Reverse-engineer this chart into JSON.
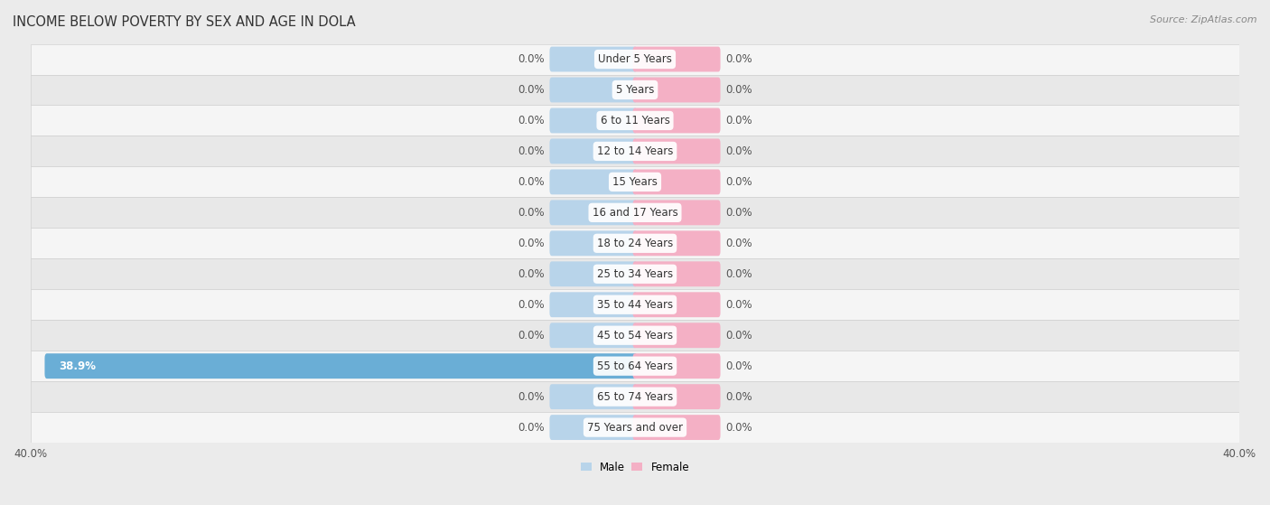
{
  "title": "INCOME BELOW POVERTY BY SEX AND AGE IN DOLA",
  "source": "Source: ZipAtlas.com",
  "categories": [
    "Under 5 Years",
    "5 Years",
    "6 to 11 Years",
    "12 to 14 Years",
    "15 Years",
    "16 and 17 Years",
    "18 to 24 Years",
    "25 to 34 Years",
    "35 to 44 Years",
    "45 to 54 Years",
    "55 to 64 Years",
    "65 to 74 Years",
    "75 Years and over"
  ],
  "male_values": [
    0.0,
    0.0,
    0.0,
    0.0,
    0.0,
    0.0,
    0.0,
    0.0,
    0.0,
    0.0,
    38.9,
    0.0,
    0.0
  ],
  "female_values": [
    0.0,
    0.0,
    0.0,
    0.0,
    0.0,
    0.0,
    0.0,
    0.0,
    0.0,
    0.0,
    0.0,
    0.0,
    0.0
  ],
  "male_color_light": "#b8d4ea",
  "male_color_full": "#6aaed6",
  "female_color": "#f4b0c5",
  "male_label": "Male",
  "female_label": "Female",
  "xlim": 40.0,
  "bar_height": 0.52,
  "bg_color": "#ebebeb",
  "row_bg_even": "#f5f5f5",
  "row_bg_odd": "#e8e8e8",
  "title_fontsize": 10.5,
  "label_fontsize": 8.5,
  "tick_fontsize": 8.5,
  "source_fontsize": 8,
  "stub_size": 5.5
}
